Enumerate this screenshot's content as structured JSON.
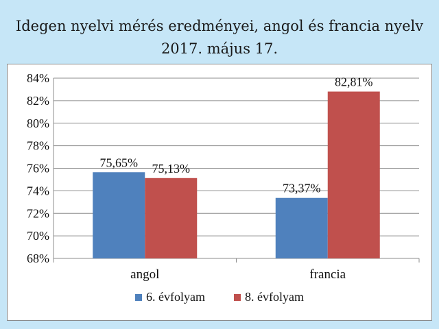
{
  "title": {
    "line1": "Idegen nyelvi mérés eredményei, angol és francia nyelv",
    "line2": "2017. május 17."
  },
  "chart_data": {
    "type": "bar",
    "categories": [
      "angol",
      "francia"
    ],
    "series": [
      {
        "name": "6. évfolyam",
        "values": [
          75.65,
          73.37
        ],
        "labels": [
          "75,65%",
          "73,37%"
        ],
        "color": "#4f81bd"
      },
      {
        "name": "8. évfolyam",
        "values": [
          75.13,
          82.81
        ],
        "labels": [
          "75,13%",
          "82,81%"
        ],
        "color": "#c0504d"
      }
    ],
    "ylim": [
      68,
      84
    ],
    "yticks": [
      68,
      70,
      72,
      74,
      76,
      78,
      80,
      82,
      84
    ],
    "ytick_labels": [
      "68%",
      "70%",
      "72%",
      "74%",
      "76%",
      "78%",
      "80%",
      "82%",
      "84%"
    ],
    "grid": true,
    "legend": "bottom"
  }
}
